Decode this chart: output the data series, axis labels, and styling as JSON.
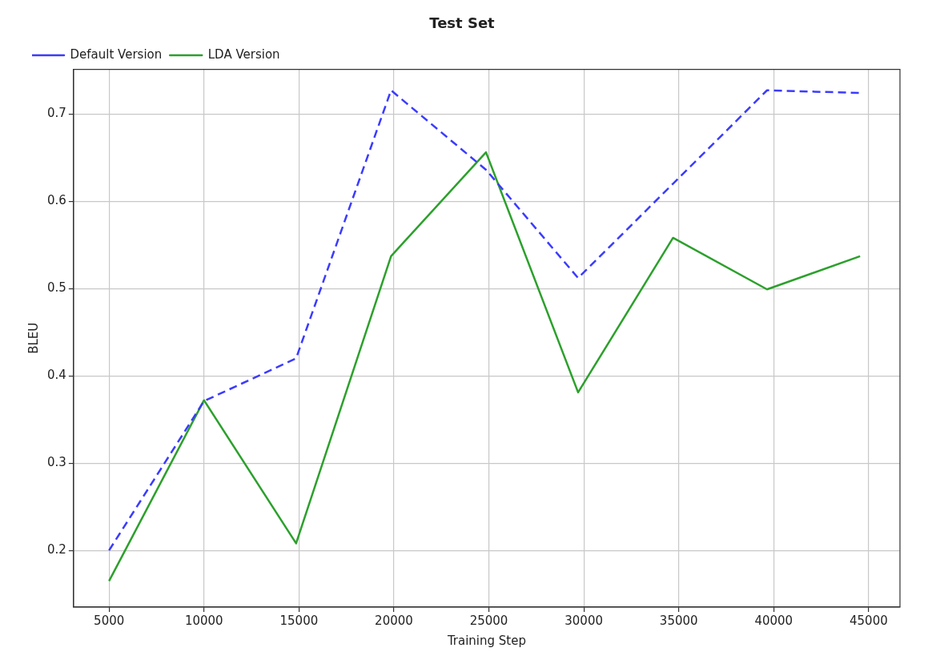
{
  "chart_data": {
    "type": "line",
    "title": "Test Set",
    "xlabel": "Training Step",
    "ylabel": "BLEU",
    "x": [
      5000,
      10000,
      14850,
      19850,
      24850,
      29700,
      34700,
      39650,
      44550
    ],
    "series": [
      {
        "name": "Default Version",
        "color": "#3b3bff",
        "line_style": "dashed",
        "values": [
          0.2,
          0.371,
          0.42,
          0.727,
          0.636,
          0.512,
          0.62,
          0.727,
          0.724
        ]
      },
      {
        "name": "LDA Version",
        "color": "#2ca02c",
        "line_style": "solid",
        "values": [
          0.165,
          0.372,
          0.208,
          0.537,
          0.656,
          0.381,
          0.558,
          0.499,
          0.537
        ]
      }
    ],
    "xlim": [
      3130,
      46650
    ],
    "xticks": [
      5000,
      10000,
      15000,
      20000,
      25000,
      30000,
      35000,
      40000,
      45000
    ],
    "ylim": [
      0.135,
      0.751
    ],
    "yticks": [
      0.2,
      0.3,
      0.4,
      0.5,
      0.6,
      0.7
    ],
    "grid": true,
    "legend": "top left",
    "marker": "none"
  }
}
